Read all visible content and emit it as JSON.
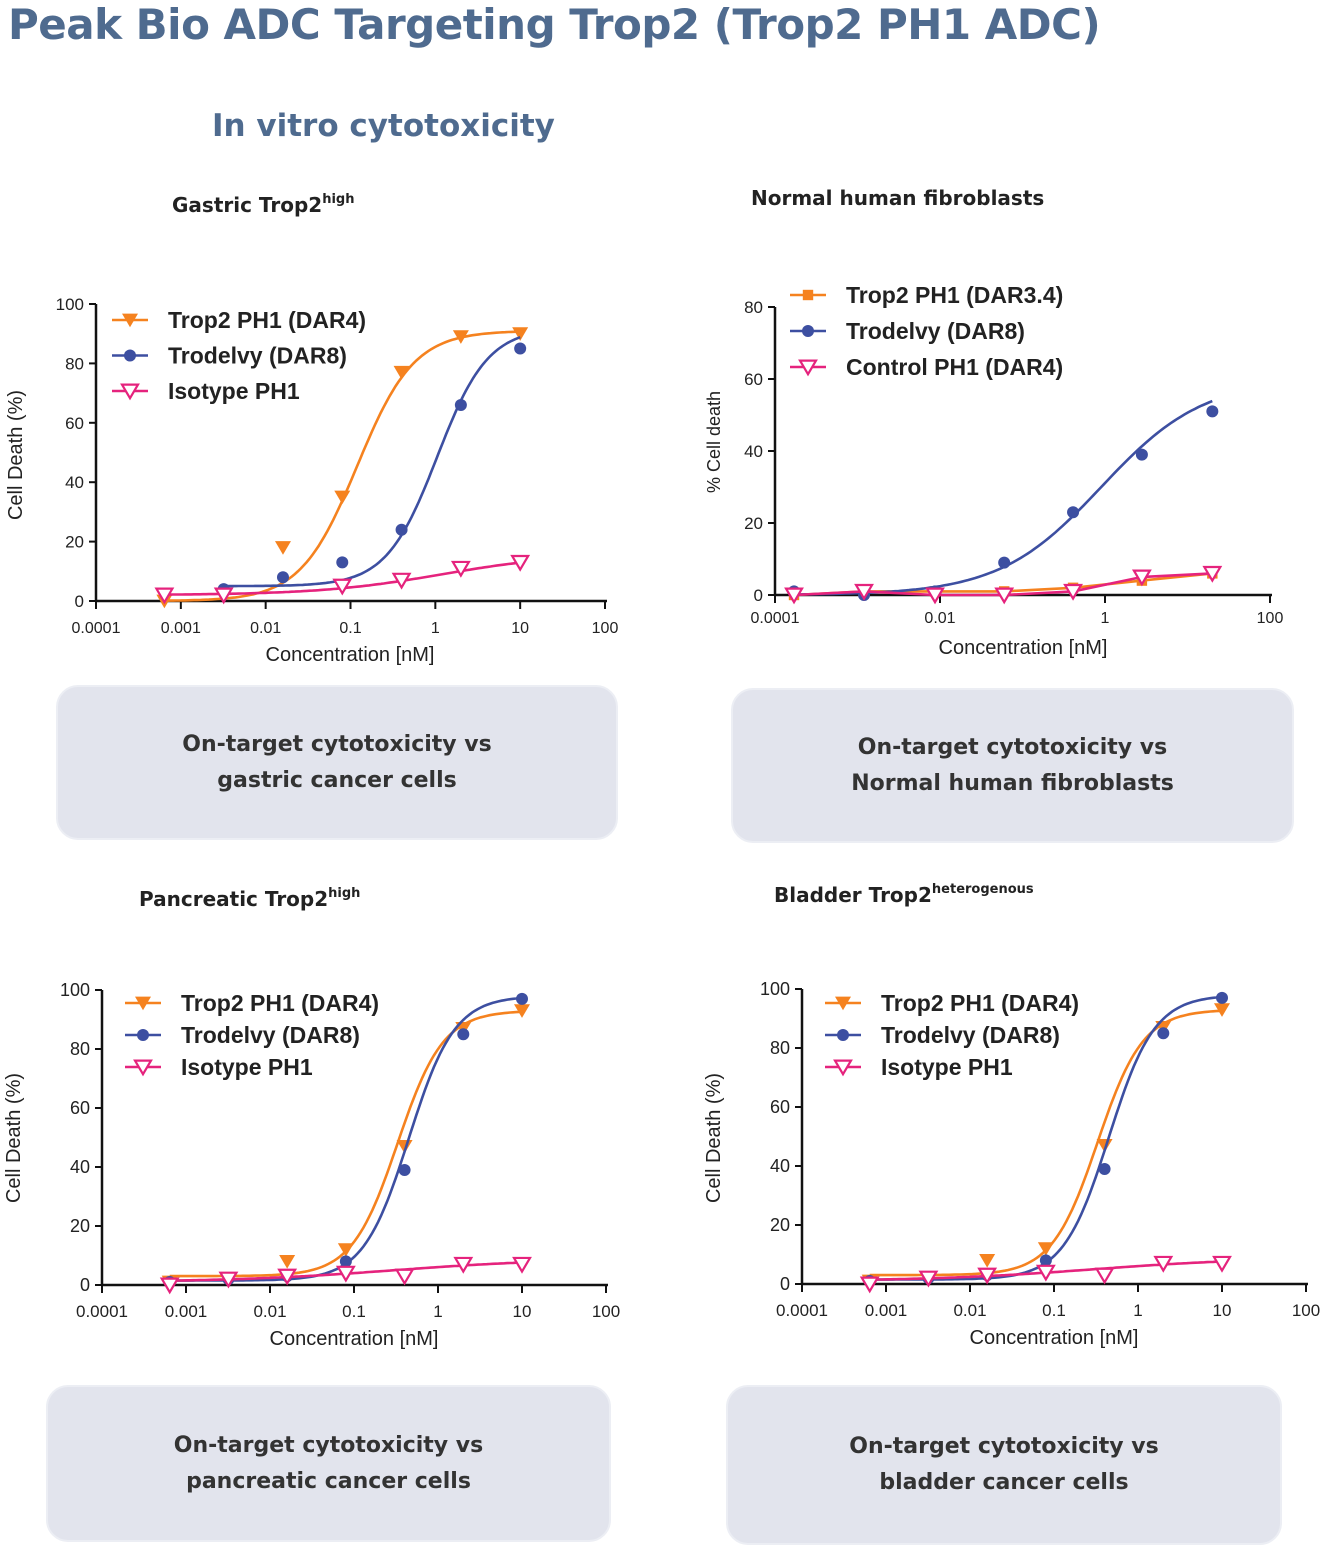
{
  "title": "Peak Bio ADC Targeting Trop2 (Trop2 PH1 ADC)",
  "section_title": "In vitro cytotoxicity",
  "panels": [
    {
      "subtitle": "Gastric Trop2",
      "subtitle_sup": "high",
      "box_lines": [
        "On-target cytotoxicity vs",
        "gastric cancer cells"
      ]
    },
    {
      "subtitle": "Normal human fibroblasts",
      "subtitle_sup": "",
      "box_lines": [
        "On-target cytotoxicity vs",
        "Normal human fibroblasts"
      ]
    },
    {
      "subtitle": "Pancreatic Trop2",
      "subtitle_sup": "high",
      "box_lines": [
        "On-target cytotoxicity vs",
        "pancreatic cancer cells"
      ]
    },
    {
      "subtitle": "Bladder Trop2",
      "subtitle_sup": "heterogenous",
      "box_lines": [
        "On-target cytotoxicity vs",
        "bladder cancer cells"
      ]
    }
  ],
  "colors": {
    "orange": "#f5821f",
    "blue": "#3d4fa1",
    "pink": "#e5237d",
    "title": "#4f6b8f",
    "box": "#e2e4ed"
  },
  "chart_data": [
    {
      "type": "line",
      "xscale": "log",
      "xlabel": "Concentration [nM]",
      "ylabel": "Cell Death (%)",
      "xlim": [
        0.0001,
        100
      ],
      "ylim": [
        0,
        100
      ],
      "xticks": [
        "0.0001",
        "0.001",
        "0.01",
        "0.1",
        "1",
        "10",
        "100"
      ],
      "yticks": [
        0,
        20,
        40,
        60,
        80,
        100
      ],
      "legend": "top-left",
      "series": [
        {
          "name": "Trop2 PH1 (DAR4)",
          "color": "#f5821f",
          "marker": "triangle-down-filled",
          "x": [
            0.00064,
            0.0032,
            0.016,
            0.08,
            0.4,
            2,
            10
          ],
          "y": [
            0,
            2,
            18,
            35,
            77,
            89,
            90
          ],
          "fit": {
            "bottom": 0,
            "top": 91,
            "ec50": 0.12,
            "hill": 1.3
          }
        },
        {
          "name": "Trodelvy (DAR8)",
          "color": "#3d4fa1",
          "marker": "circle-filled",
          "x": [
            0.0032,
            0.016,
            0.08,
            0.4,
            2,
            10
          ],
          "y": [
            4,
            8,
            13,
            24,
            66,
            85
          ],
          "fit": {
            "bottom": 5,
            "top": 92,
            "ec50": 1.05,
            "hill": 1.45
          }
        },
        {
          "name": "Isotype PH1",
          "color": "#e5237d",
          "marker": "triangle-down-open",
          "x": [
            0.00064,
            0.0032,
            0.08,
            0.4,
            2,
            10
          ],
          "y": [
            2,
            2,
            5,
            7,
            11,
            13
          ],
          "fit": {
            "bottom": 2,
            "top": 16,
            "ec50": 1.2,
            "hill": 0.6
          }
        }
      ]
    },
    {
      "type": "line",
      "xscale": "log",
      "xlabel": "Concentration [nM]",
      "ylabel": "% Cell death",
      "xlim": [
        0.0001,
        100
      ],
      "ylim": [
        0,
        80
      ],
      "xticks": [
        "0.0001",
        "0.01",
        "1",
        "100"
      ],
      "yticks": [
        0,
        20,
        40,
        60,
        80
      ],
      "legend": "top-left",
      "series": [
        {
          "name": "Trop2 PH1 (DAR3.4)",
          "color": "#f5821f",
          "marker": "square-filled",
          "x": [
            0.00017,
            0.0012,
            0.0087,
            0.06,
            0.41,
            2.8,
            20
          ],
          "y": [
            0,
            1,
            1,
            1,
            2,
            4,
            6
          ],
          "fit": null
        },
        {
          "name": "Trodelvy (DAR8)",
          "color": "#3d4fa1",
          "marker": "circle-filled",
          "x": [
            0.00017,
            0.0012,
            0.0087,
            0.06,
            0.41,
            2.8,
            20
          ],
          "y": [
            1,
            0,
            1,
            9,
            23,
            39,
            51
          ],
          "fit": {
            "bottom": 0,
            "top": 60,
            "ec50": 0.9,
            "hill": 0.7
          }
        },
        {
          "name": "Control PH1 (DAR4)",
          "color": "#e5237d",
          "marker": "triangle-down-open",
          "x": [
            0.00017,
            0.0012,
            0.0087,
            0.06,
            0.41,
            2.8,
            20
          ],
          "y": [
            0,
            1,
            0,
            0,
            1,
            5,
            6
          ],
          "fit": null
        }
      ]
    },
    {
      "type": "line",
      "xscale": "log",
      "xlabel": "Concentration [nM]",
      "ylabel": "Cell Death (%)",
      "xlim": [
        0.0001,
        100
      ],
      "ylim": [
        0,
        100
      ],
      "xticks": [
        "0.0001",
        "0.001",
        "0.01",
        "0.1",
        "1",
        "10",
        "100"
      ],
      "yticks": [
        0,
        20,
        40,
        60,
        80,
        100
      ],
      "legend": "top-left",
      "series": [
        {
          "name": "Trop2 PH1 (DAR4)",
          "color": "#f5821f",
          "marker": "triangle-down-filled",
          "x": [
            0.00064,
            0.0032,
            0.016,
            0.08,
            0.4,
            2,
            10
          ],
          "y": [
            1,
            2,
            8,
            12,
            47,
            87,
            93
          ],
          "fit": {
            "bottom": 3,
            "top": 93,
            "ec50": 0.33,
            "hill": 1.6
          }
        },
        {
          "name": "Trodelvy (DAR8)",
          "color": "#3d4fa1",
          "marker": "circle-filled",
          "x": [
            0.00064,
            0.0032,
            0.016,
            0.08,
            0.4,
            2,
            10
          ],
          "y": [
            1,
            2,
            3,
            8,
            39,
            85,
            97
          ],
          "fit": {
            "bottom": 1.5,
            "top": 98,
            "ec50": 0.45,
            "hill": 1.6
          }
        },
        {
          "name": "Isotype PH1",
          "color": "#e5237d",
          "marker": "triangle-down-open",
          "x": [
            0.00064,
            0.0032,
            0.016,
            0.08,
            0.4,
            2,
            10
          ],
          "y": [
            0,
            2,
            3,
            4,
            3,
            7,
            7
          ],
          "fit": {
            "bottom": 1,
            "top": 9,
            "ec50": 0.3,
            "hill": 0.45
          }
        }
      ]
    },
    {
      "type": "line",
      "xscale": "log",
      "xlabel": "Concentration [nM]",
      "ylabel": "Cell Death (%)",
      "xlim": [
        0.0001,
        100
      ],
      "ylim": [
        0,
        100
      ],
      "xticks": [
        "0.0001",
        "0.001",
        "0.01",
        "0.1",
        "1",
        "10",
        "100"
      ],
      "yticks": [
        0,
        20,
        40,
        60,
        80,
        100
      ],
      "legend": "top-left",
      "series": [
        {
          "name": "Trop2 PH1 (DAR4)",
          "color": "#f5821f",
          "marker": "triangle-down-filled",
          "x": [
            0.00064,
            0.0032,
            0.016,
            0.08,
            0.4,
            2,
            10
          ],
          "y": [
            1,
            2,
            8,
            12,
            47,
            87,
            93
          ],
          "fit": {
            "bottom": 3,
            "top": 93,
            "ec50": 0.33,
            "hill": 1.6
          }
        },
        {
          "name": "Trodelvy (DAR8)",
          "color": "#3d4fa1",
          "marker": "circle-filled",
          "x": [
            0.00064,
            0.0032,
            0.016,
            0.08,
            0.4,
            2,
            10
          ],
          "y": [
            1,
            2,
            3,
            8,
            39,
            85,
            97
          ],
          "fit": {
            "bottom": 1.5,
            "top": 98,
            "ec50": 0.45,
            "hill": 1.6
          }
        },
        {
          "name": "Isotype PH1",
          "color": "#e5237d",
          "marker": "triangle-down-open",
          "x": [
            0.00064,
            0.0032,
            0.016,
            0.08,
            0.4,
            2,
            10
          ],
          "y": [
            0,
            2,
            3,
            4,
            3,
            7,
            7
          ],
          "fit": {
            "bottom": 1,
            "top": 9,
            "ec50": 0.3,
            "hill": 0.45
          }
        }
      ]
    }
  ]
}
